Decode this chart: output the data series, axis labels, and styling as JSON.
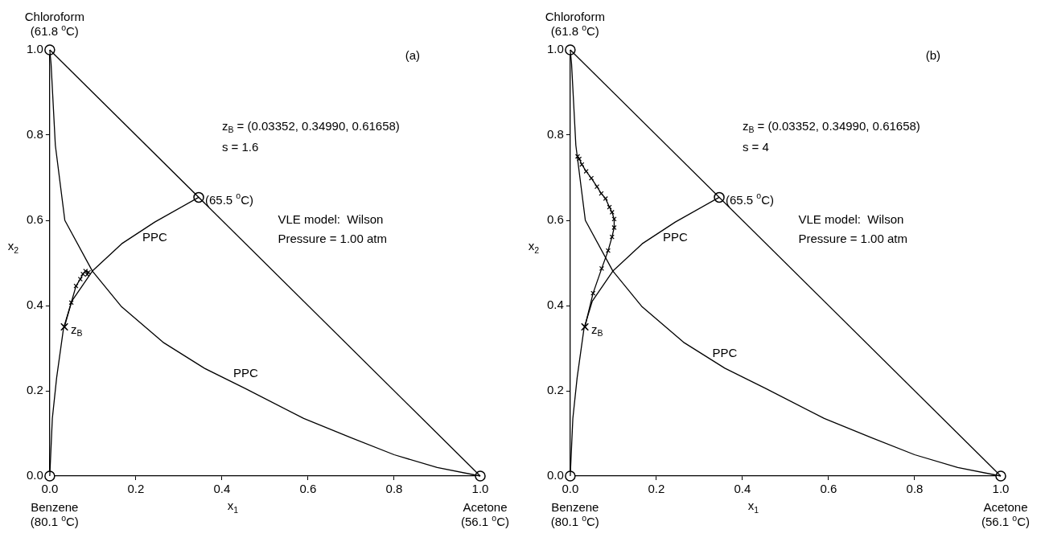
{
  "chart_data": [
    {
      "type": "line",
      "xlabel": "x$_{1}$",
      "ylabel": "x$_{2}$",
      "xlim": [
        0,
        1
      ],
      "ylim": [
        0,
        1
      ],
      "xticks": [
        {
          "value": 0,
          "label": "0.0"
        },
        {
          "value": 0.2,
          "label": "0.2"
        },
        {
          "value": 0.4,
          "label": "0.4"
        },
        {
          "value": 0.6,
          "label": "0.6"
        },
        {
          "value": 0.8,
          "label": "0.8"
        },
        {
          "value": 1,
          "label": "1.0"
        }
      ],
      "yticks": [
        {
          "value": 0,
          "label": "0.0"
        },
        {
          "value": 0.2,
          "label": "0.2"
        },
        {
          "value": 0.4,
          "label": "0.4"
        },
        {
          "value": 0.6,
          "label": "0.6"
        },
        {
          "value": 0.8,
          "label": "0.8"
        },
        {
          "value": 1,
          "label": "1.0"
        }
      ],
      "grid": false,
      "series": [
        {
          "type": "line",
          "marker": "none",
          "color": "#000000",
          "x": [
            0,
            1
          ],
          "values": [
            1,
            0
          ]
        },
        {
          "type": "line",
          "marker": "none",
          "color": "#000000",
          "x": [
            0,
            0.003,
            0.013,
            0.035,
            0.099,
            0.167,
            0.263,
            0.359,
            0.455,
            0.59,
            0.7,
            0.8,
            0.9,
            1
          ],
          "values": [
            1,
            0.968,
            0.776,
            0.6,
            0.481,
            0.397,
            0.314,
            0.253,
            0.205,
            0.135,
            0.09,
            0.05,
            0.02,
            0
          ]
        },
        {
          "type": "line",
          "marker": "none",
          "color": "#000000",
          "x": [
            0,
            0.006,
            0.016,
            0.032,
            0.051,
            0.099,
            0.167,
            0.244,
            0.346
          ],
          "values": [
            0,
            0.135,
            0.231,
            0.347,
            0.41,
            0.481,
            0.545,
            0.596,
            0.654
          ]
        },
        {
          "type": "line",
          "marker": "cross",
          "color": "#000000",
          "x": [
            0.034,
            0.05,
            0.061,
            0.071,
            0.077,
            0.083,
            0.09,
            0.087
          ],
          "values": [
            0.35,
            0.407,
            0.446,
            0.462,
            0.474,
            0.481,
            0.478,
            0.473
          ]
        },
        {
          "type": "scatter",
          "marker": "cross",
          "color": "#000000",
          "x": [
            0.034
          ],
          "values": [
            0.35
          ]
        },
        {
          "type": "scatter",
          "marker": "circle",
          "color": "#000000",
          "x": [
            0,
            0,
            1,
            0.346
          ],
          "values": [
            1,
            0,
            0,
            0.654
          ]
        }
      ],
      "annotations": [
        {
          "text": "Chloroform\n(61.8 $^{o}$C)",
          "x": 0,
          "y": 1
        },
        {
          "text": "Benzene\n(80.1 $^{o}$C)",
          "x": 0,
          "y": 0
        },
        {
          "text": "Acetone\n(56.1 $^{o}$C)",
          "x": 1,
          "y": 0
        },
        {
          "text": "(65.5 $^{o}$C)",
          "x": 0.346,
          "y": 0.654
        },
        {
          "text": "z$_{B}$",
          "x": 0.034,
          "y": 0.35
        },
        {
          "text": "PPC",
          "x": 0.244,
          "y": 0.596
        },
        {
          "text": "PPC",
          "x": 0.455,
          "y": 0.205
        },
        "(a)",
        "z$_{B}$ = (0.03352, 0.34990, 0.61658)",
        "s = 1.6",
        "VLE model:  Wilson",
        "Pressure = 1.00 atm"
      ]
    },
    {
      "type": "line",
      "xlabel": "x$_{1}$",
      "ylabel": "x$_{2}$",
      "xlim": [
        0,
        1
      ],
      "ylim": [
        0,
        1
      ],
      "xticks": [
        {
          "value": 0,
          "label": "0.0"
        },
        {
          "value": 0.2,
          "label": "0.2"
        },
        {
          "value": 0.4,
          "label": "0.4"
        },
        {
          "value": 0.6,
          "label": "0.6"
        },
        {
          "value": 0.8,
          "label": "0.8"
        },
        {
          "value": 1,
          "label": "1.0"
        }
      ],
      "yticks": [
        {
          "value": 0,
          "label": "0.0"
        },
        {
          "value": 0.2,
          "label": "0.2"
        },
        {
          "value": 0.4,
          "label": "0.4"
        },
        {
          "value": 0.6,
          "label": "0.6"
        },
        {
          "value": 0.8,
          "label": "0.8"
        },
        {
          "value": 1,
          "label": "1.0"
        }
      ],
      "grid": false,
      "series": [
        {
          "type": "line",
          "marker": "none",
          "color": "#000000",
          "x": [
            0,
            1
          ],
          "values": [
            1,
            0
          ]
        },
        {
          "type": "line",
          "marker": "none",
          "color": "#000000",
          "x": [
            0,
            0.003,
            0.013,
            0.035,
            0.099,
            0.167,
            0.263,
            0.359,
            0.455,
            0.59,
            0.7,
            0.8,
            0.9,
            1
          ],
          "values": [
            1,
            0.968,
            0.776,
            0.6,
            0.481,
            0.397,
            0.314,
            0.253,
            0.205,
            0.135,
            0.09,
            0.05,
            0.02,
            0
          ]
        },
        {
          "type": "line",
          "marker": "none",
          "color": "#000000",
          "x": [
            0,
            0.006,
            0.016,
            0.032,
            0.051,
            0.099,
            0.167,
            0.244,
            0.346
          ],
          "values": [
            0,
            0.135,
            0.231,
            0.347,
            0.41,
            0.481,
            0.545,
            0.596,
            0.654
          ]
        },
        {
          "type": "line",
          "marker": "cross",
          "color": "#000000",
          "x": [
            0.034,
            0.053,
            0.073,
            0.088,
            0.097,
            0.102,
            0.102,
            0.097,
            0.091,
            0.082,
            0.072,
            0.062,
            0.049,
            0.037,
            0.027,
            0.021,
            0.017
          ],
          "values": [
            0.35,
            0.429,
            0.487,
            0.529,
            0.561,
            0.583,
            0.603,
            0.619,
            0.631,
            0.651,
            0.663,
            0.679,
            0.699,
            0.715,
            0.731,
            0.744,
            0.75
          ]
        },
        {
          "type": "scatter",
          "marker": "cross",
          "color": "#000000",
          "x": [
            0.034
          ],
          "values": [
            0.35
          ]
        },
        {
          "type": "scatter",
          "marker": "circle",
          "color": "#000000",
          "x": [
            0,
            0,
            1,
            0.346
          ],
          "values": [
            1,
            0,
            0,
            0.654
          ]
        }
      ],
      "annotations": [
        {
          "text": "Chloroform\n(61.8 $^{o}$C)",
          "x": 0,
          "y": 1
        },
        {
          "text": "Benzene\n(80.1 $^{o}$C)",
          "x": 0,
          "y": 0
        },
        {
          "text": "Acetone\n(56.1 $^{o}$C)",
          "x": 1,
          "y": 0
        },
        {
          "text": "(65.5 $^{o}$C)",
          "x": 0.346,
          "y": 0.654
        },
        {
          "text": "z$_{B}$",
          "x": 0.034,
          "y": 0.35
        },
        {
          "text": "PPC",
          "x": 0.244,
          "y": 0.596
        },
        {
          "text": "PPC",
          "x": 0.359,
          "y": 0.253
        },
        "(b)",
        "z$_{B}$ = (0.03352, 0.34990, 0.61658)",
        "s = 4",
        "VLE model:  Wilson",
        "Pressure = 1.00 atm"
      ]
    }
  ]
}
